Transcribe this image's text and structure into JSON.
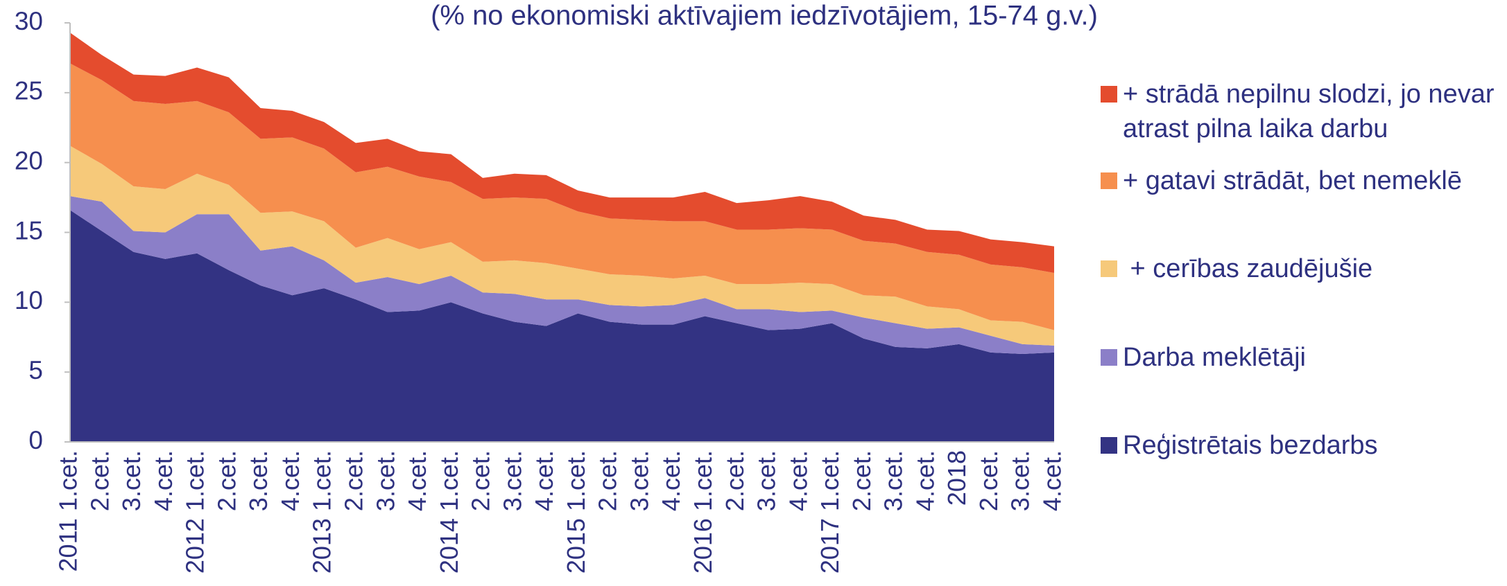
{
  "chart_data": {
    "type": "stacked_area",
    "title": "(% no ekonomiski aktīvajiem iedzīvotājiem, 15-74 g.v.)",
    "categories": [
      "2011 1.cet.",
      "2.cet.",
      "3.cet.",
      "4.cet.",
      "2012 1.cet.",
      "2.cet.",
      "3.cet.",
      "4.cet.",
      "2013 1.cet.",
      "2.cet.",
      "3.cet.",
      "4.cet.",
      "2014 1.cet.",
      "2.cet.",
      "3.cet.",
      "4.cet.",
      "2015 1.cet.",
      "2.cet.",
      "3.cet.",
      "4.cet.",
      "2016 1.cet.",
      "2.cet.",
      "3.cet.",
      "4.cet.",
      "2017 1.cet.",
      "2.cet.",
      "3.cet.",
      "4.cet.",
      "2018",
      "2.cet.",
      "3.cet.",
      "4.cet."
    ],
    "series": [
      {
        "name": "Reģistrētais bezdarbs",
        "color": "#333383",
        "values": [
          16.6,
          15.1,
          13.6,
          13.1,
          13.5,
          12.3,
          11.2,
          10.5,
          11.0,
          10.2,
          9.3,
          9.4,
          10.0,
          9.2,
          8.6,
          8.3,
          9.2,
          8.6,
          8.4,
          8.4,
          9.0,
          8.5,
          8.0,
          8.1,
          8.5,
          7.4,
          6.8,
          6.7,
          7.0,
          6.4,
          6.3,
          6.4
        ]
      },
      {
        "name": "Darba meklētāji",
        "color": "#8b7fc8",
        "values": [
          1.0,
          2.1,
          1.5,
          1.9,
          2.8,
          4.0,
          2.5,
          3.5,
          2.0,
          1.2,
          2.5,
          1.9,
          1.9,
          1.5,
          2.0,
          1.9,
          1.0,
          1.2,
          1.3,
          1.4,
          1.3,
          1.0,
          1.5,
          1.2,
          0.9,
          1.5,
          1.7,
          1.4,
          1.2,
          1.2,
          0.7,
          0.5
        ]
      },
      {
        "name": " + cerības zaudējušie",
        "color": "#f6c97a",
        "values": [
          3.6,
          2.7,
          3.2,
          3.1,
          2.9,
          2.1,
          2.7,
          2.5,
          2.8,
          2.5,
          2.8,
          2.5,
          2.4,
          2.2,
          2.4,
          2.6,
          2.2,
          2.2,
          2.2,
          1.9,
          1.6,
          1.8,
          1.8,
          2.1,
          1.9,
          1.6,
          1.9,
          1.6,
          1.3,
          1.1,
          1.6,
          1.1
        ]
      },
      {
        "name": "+ gatavi strādāt, bet nemeklē",
        "color": "#f68f4e",
        "values": [
          5.9,
          6.0,
          6.1,
          6.1,
          5.2,
          5.2,
          5.3,
          5.3,
          5.2,
          5.4,
          5.1,
          5.2,
          4.3,
          4.5,
          4.5,
          4.6,
          4.1,
          4.0,
          4.0,
          4.1,
          3.9,
          3.9,
          3.9,
          3.9,
          3.9,
          3.9,
          3.8,
          3.9,
          3.9,
          4.0,
          3.9,
          4.1
        ]
      },
      {
        "name": "+ strādā nepilnu slodzi, jo nevar atrast pilna laika darbu",
        "color": "#e44c2e",
        "values": [
          2.2,
          1.8,
          1.9,
          2.0,
          2.4,
          2.5,
          2.2,
          1.9,
          1.9,
          2.1,
          2.0,
          1.8,
          2.0,
          1.5,
          1.7,
          1.7,
          1.5,
          1.5,
          1.6,
          1.7,
          2.1,
          1.9,
          2.1,
          2.3,
          2.0,
          1.8,
          1.7,
          1.6,
          1.7,
          1.8,
          1.8,
          1.9
        ]
      }
    ],
    "ylim": [
      0,
      30
    ],
    "yticks": [
      0,
      5,
      10,
      15,
      20,
      25,
      30
    ],
    "legend": "right"
  }
}
